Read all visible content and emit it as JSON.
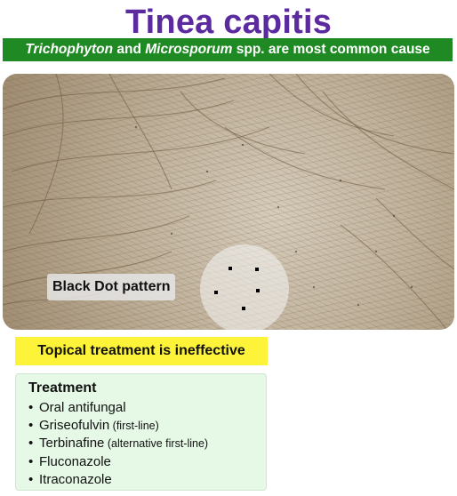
{
  "title": "Tinea capitis",
  "subtitle": {
    "part1": "Trichophyton",
    "part2": " and ",
    "part3": "Microsporum",
    "part4": " spp. are most common cause"
  },
  "photo": {
    "callout": "Black Dot pattern"
  },
  "notice": "Topical treatment is ineffective",
  "treatment": {
    "heading": "Treatment",
    "items": [
      {
        "text": "Oral antifungal",
        "note": ""
      },
      {
        "text": "Griseofulvin",
        "note": " (first-line)"
      },
      {
        "text": "Terbinafine",
        "note": " (alternative first-line)"
      },
      {
        "text": "Fluconazole",
        "note": ""
      },
      {
        "text": "Itraconazole",
        "note": ""
      }
    ]
  },
  "colors": {
    "title": "#5a2a9e",
    "subtitle_bg": "#1f8a23",
    "notice_bg": "#fdf43a",
    "treatment_bg": "#e6f8e6"
  }
}
